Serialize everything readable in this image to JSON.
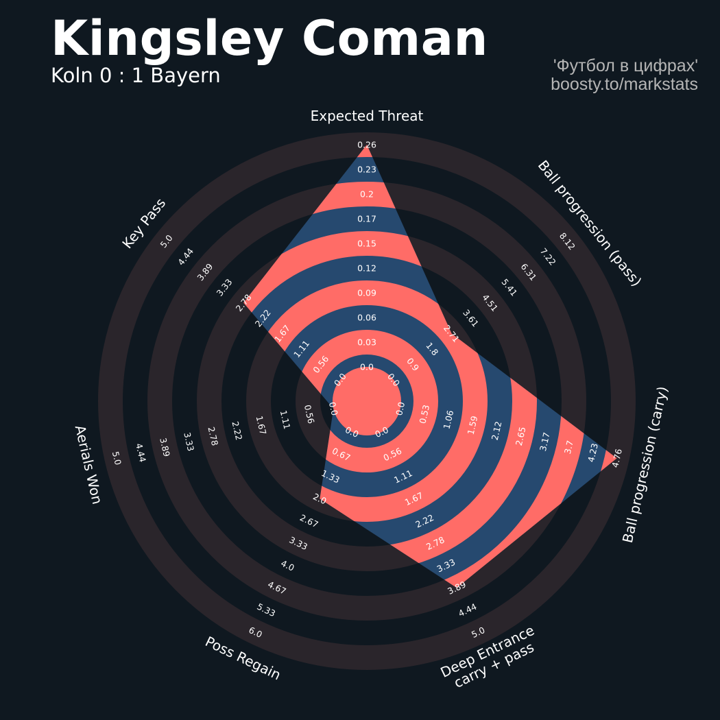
{
  "header": {
    "title": "Kingsley Coman",
    "subtitle": "Koln 0 : 1 Bayern",
    "credit_line1": "'Футбол в цифрах'",
    "credit_line2": "boosty.to/markstats"
  },
  "colors": {
    "background": "#0f1820",
    "ring_band": "#2a252b",
    "polygon_fill": "#26496f",
    "polygon_stripe": "#ff6c67",
    "text": "#ffffff",
    "credit": "#b5b5b5"
  },
  "chart_data": {
    "type": "radar",
    "title": "",
    "parameters": [
      "Expected Threat",
      "Ball progression (pass)",
      "Ball progression (carry)",
      "Deep Entrance\ncarry + pass",
      "Poss Regain",
      "Aerials Won",
      "Key Pass"
    ],
    "values": [
      0.26,
      2.71,
      4.76,
      3.89,
      2.0,
      0.0,
      2.78
    ],
    "ranges": [
      [
        0.0,
        0.26
      ],
      [
        0.0,
        8.12
      ],
      [
        0.0,
        4.76
      ],
      [
        0.0,
        5.0
      ],
      [
        0.0,
        6.0
      ],
      [
        0.0,
        5.0
      ],
      [
        0.0,
        5.0
      ]
    ],
    "tick_labels": [
      [
        "0.0",
        "0.03",
        "0.06",
        "0.09",
        "0.12",
        "0.15",
        "0.17",
        "0.2",
        "0.23",
        "0.26"
      ],
      [
        "0.0",
        "0.9",
        "1.8",
        "2.71",
        "3.61",
        "4.51",
        "5.41",
        "6.31",
        "7.22",
        "8.12"
      ],
      [
        "0.0",
        "0.53",
        "1.06",
        "1.59",
        "2.12",
        "2.65",
        "3.17",
        "3.7",
        "4.23",
        "4.76"
      ],
      [
        "0.0",
        "0.56",
        "1.11",
        "1.67",
        "2.22",
        "2.78",
        "3.33",
        "3.89",
        "4.44",
        "5.0"
      ],
      [
        "0.0",
        "0.67",
        "1.33",
        "2.0",
        "2.67",
        "3.33",
        "4.0",
        "4.67",
        "5.33",
        "6.0"
      ],
      [
        "0.0",
        "0.56",
        "1.11",
        "1.67",
        "2.22",
        "2.78",
        "3.33",
        "3.89",
        "4.44",
        "5.0"
      ],
      [
        "0.0",
        "0.56",
        "1.11",
        "1.67",
        "2.22",
        "2.78",
        "3.33",
        "3.89",
        "4.44",
        "5.0"
      ]
    ],
    "rings": 10
  }
}
